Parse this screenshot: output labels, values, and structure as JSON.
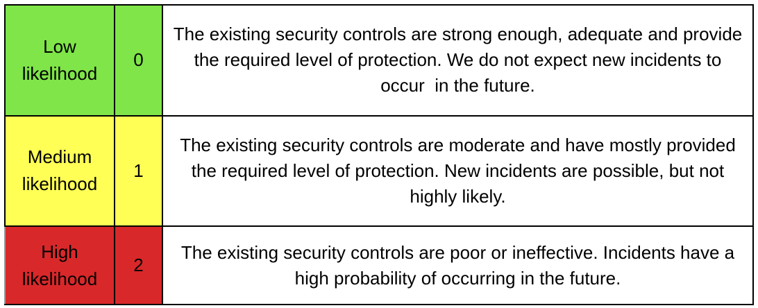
{
  "rows": [
    {
      "level": "Low\nlikelihood",
      "score": "0",
      "description": "The existing security controls are strong enough, adequate and provide the required level of protection. We do not expect new incidents to occur  in the future.",
      "color": "#7fe548"
    },
    {
      "level": "Medium\nlikelihood",
      "score": "1",
      "description": "The existing security controls are moderate and have mostly provided the required level of protection. New incidents are possible, but not highly likely.",
      "color": "#ffff55"
    },
    {
      "level": "High\nlikelihood",
      "score": "2",
      "description": "The existing security controls are poor or ineffective. Incidents have a high probability of occurring in the future.",
      "color": "#d9282a"
    }
  ]
}
